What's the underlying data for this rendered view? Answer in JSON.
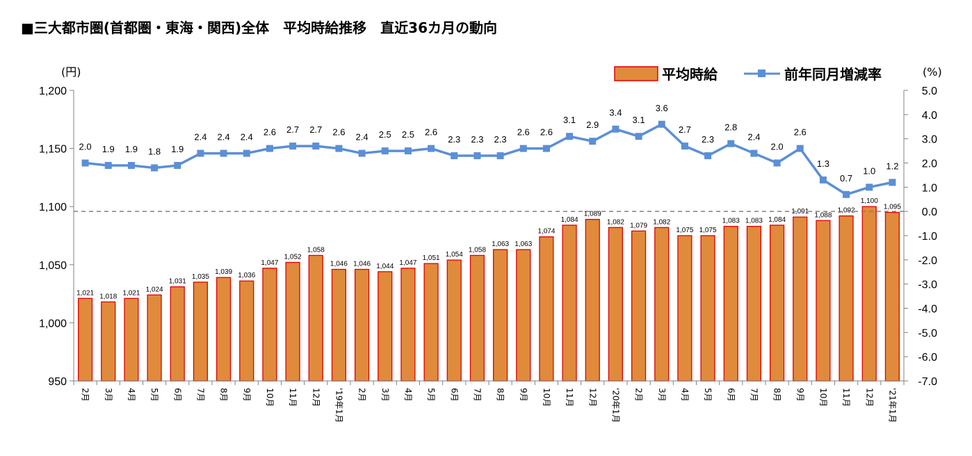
{
  "title": "■三大都市圏(首都圏・東海・関西)全体　平均時給推移　直近36カ月の動向",
  "left_unit": "(円)",
  "right_unit": "(%)",
  "colors": {
    "bar_fill": "#E08A3C",
    "bar_stroke": "#E00000",
    "line": "#5B8FD6",
    "axis": "#808080",
    "zero_line": "#808080"
  },
  "chart_data": {
    "type": "bar+line",
    "categories": [
      "2月",
      "3月",
      "4月",
      "5月",
      "6月",
      "7月",
      "8月",
      "9月",
      "10月",
      "11月",
      "12月",
      "'19年1月",
      "2月",
      "3月",
      "4月",
      "5月",
      "6月",
      "7月",
      "8月",
      "9月",
      "10月",
      "11月",
      "12月",
      "'20年1月",
      "2月",
      "3月",
      "4月",
      "5月",
      "6月",
      "7月",
      "8月",
      "9月",
      "10月",
      "11月",
      "12月",
      "'21年1月"
    ],
    "series": [
      {
        "name": "平均時給",
        "type": "bar",
        "axis": "left",
        "values": [
          1021,
          1018,
          1021,
          1024,
          1031,
          1035,
          1039,
          1036,
          1047,
          1052,
          1058,
          1046,
          1046,
          1044,
          1047,
          1051,
          1054,
          1058,
          1063,
          1063,
          1074,
          1084,
          1089,
          1082,
          1079,
          1082,
          1075,
          1075,
          1083,
          1083,
          1084,
          1091,
          1088,
          1092,
          1100,
          1095
        ],
        "labels": [
          "1,021",
          "1,018",
          "1,021",
          "1,024",
          "1,031",
          "1,035",
          "1,039",
          "1,036",
          "1,047",
          "1,052",
          "1,058",
          "1,046",
          "1,046",
          "1,044",
          "1,047",
          "1,051",
          "1,054",
          "1,058",
          "1,063",
          "1,063",
          "1,074",
          "1,084",
          "1,089",
          "1,082",
          "1,079",
          "1,082",
          "1,075",
          "1,075",
          "1,083",
          "1,083",
          "1,084",
          "1,091",
          "1,088",
          "1,092",
          "1,100",
          "1,095"
        ]
      },
      {
        "name": "前年同月増減率",
        "type": "line",
        "axis": "right",
        "values": [
          2.0,
          1.9,
          1.9,
          1.8,
          1.9,
          2.4,
          2.4,
          2.4,
          2.6,
          2.7,
          2.7,
          2.6,
          2.4,
          2.5,
          2.5,
          2.6,
          2.3,
          2.3,
          2.3,
          2.6,
          2.6,
          3.1,
          2.9,
          3.4,
          3.1,
          3.6,
          2.7,
          2.3,
          2.8,
          2.4,
          2.0,
          2.6,
          1.3,
          0.7,
          1.0,
          1.2
        ],
        "labels": [
          "2.0",
          "1.9",
          "1.9",
          "1.8",
          "1.9",
          "2.4",
          "2.4",
          "2.4",
          "2.6",
          "2.7",
          "2.7",
          "2.6",
          "2.4",
          "2.5",
          "2.5",
          "2.6",
          "2.3",
          "2.3",
          "2.3",
          "2.6",
          "2.6",
          "3.1",
          "2.9",
          "3.4",
          "3.1",
          "3.6",
          "2.7",
          "2.3",
          "2.8",
          "2.4",
          "2.0",
          "2.6",
          "1.3",
          "0.7",
          "1.0",
          "1.2"
        ]
      }
    ],
    "left_axis": {
      "ylim": [
        950,
        1200
      ],
      "ticks": [
        "950",
        "1,000",
        "1,050",
        "1,100",
        "1,150",
        "1,200"
      ]
    },
    "right_axis": {
      "ylim": [
        -7.0,
        5.0
      ],
      "ticks": [
        "-7.0",
        "-6.0",
        "-5.0",
        "-4.0",
        "-3.0",
        "-2.0",
        "-1.0",
        "0.0",
        "1.0",
        "2.0",
        "3.0",
        "4.0",
        "5.0"
      ]
    },
    "reference_line": {
      "axis": "right",
      "value": 0.0,
      "style": "dashed"
    },
    "legend": {
      "position": "top-right",
      "entries": [
        "平均時給",
        "前年同月増減率"
      ]
    },
    "grid": false
  }
}
